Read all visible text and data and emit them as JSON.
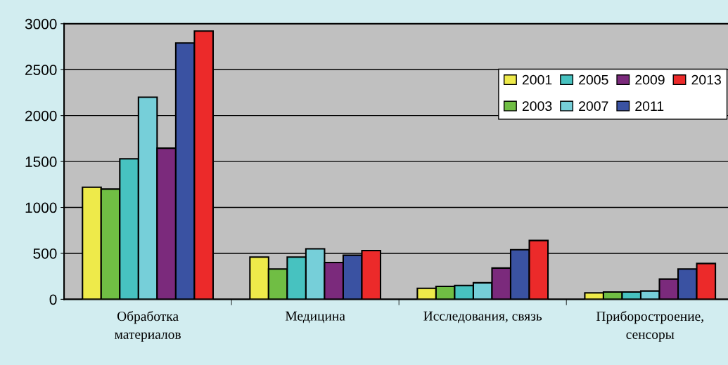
{
  "chart_data": {
    "type": "bar",
    "categories": [
      "Обработка\nматериалов",
      "Медицина",
      "Исследования, связь",
      "Приборостроение,\nсенсоры"
    ],
    "series": [
      {
        "name": "2001",
        "color": "#eeea4a",
        "values": [
          1220,
          460,
          120,
          70
        ]
      },
      {
        "name": "2003",
        "color": "#70be44",
        "values": [
          1200,
          330,
          140,
          80
        ]
      },
      {
        "name": "2005",
        "color": "#47c2c0",
        "values": [
          1530,
          460,
          150,
          80
        ]
      },
      {
        "name": "2007",
        "color": "#76cfd9",
        "values": [
          2200,
          550,
          180,
          90
        ]
      },
      {
        "name": "2009",
        "color": "#7b2a7c",
        "values": [
          1645,
          400,
          340,
          220
        ]
      },
      {
        "name": "2011",
        "color": "#3a52a2",
        "values": [
          2790,
          480,
          540,
          330
        ]
      },
      {
        "name": "2013",
        "color": "#ec2a2a",
        "values": [
          2920,
          530,
          640,
          390
        ]
      }
    ],
    "ylim": [
      0,
      3000
    ],
    "yticks": [
      0,
      500,
      1000,
      1500,
      2000,
      2500,
      3000
    ],
    "grid": "y",
    "legend": "top right"
  }
}
